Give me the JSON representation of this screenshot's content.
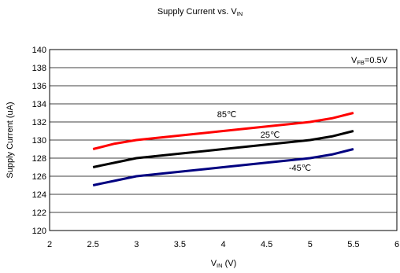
{
  "chart_data": {
    "type": "line",
    "title": {
      "main": "Supply Current vs. V",
      "sub": "IN"
    },
    "xlabel": {
      "main": "V",
      "sub": "IN",
      "rest": " (V)"
    },
    "ylabel": "Supply Current (uA)",
    "xlim": [
      2,
      6
    ],
    "ylim": [
      120,
      140
    ],
    "xticks": [
      2,
      2.5,
      3,
      3.5,
      4,
      4.5,
      5,
      5.5,
      6
    ],
    "xtick_labels": [
      "2",
      "2.5",
      "3",
      "3.5",
      "4",
      "4.5",
      "5",
      "5.5",
      "6"
    ],
    "yticks": [
      120,
      122,
      124,
      126,
      128,
      130,
      132,
      134,
      136,
      138,
      140
    ],
    "ytick_labels": [
      "120",
      "122",
      "124",
      "126",
      "128",
      "130",
      "132",
      "134",
      "136",
      "138",
      "140"
    ],
    "grid": {
      "horizontal": true,
      "vertical": false
    },
    "annotation": {
      "main": "V",
      "sub": "FB",
      "rest": "=0.5V"
    },
    "series": [
      {
        "name": "85℃",
        "color": "#ff0000",
        "x": [
          2.5,
          2.75,
          3.0,
          3.5,
          4.0,
          4.5,
          5.0,
          5.25,
          5.5
        ],
        "y": [
          129.0,
          129.6,
          130.0,
          130.5,
          131.0,
          131.5,
          132.0,
          132.4,
          133.0
        ]
      },
      {
        "name": "25℃",
        "color": "#000000",
        "x": [
          2.5,
          2.75,
          3.0,
          3.5,
          4.0,
          4.5,
          5.0,
          5.25,
          5.5
        ],
        "y": [
          127.0,
          127.5,
          128.0,
          128.5,
          129.0,
          129.5,
          130.0,
          130.4,
          131.0
        ]
      },
      {
        "name": "-45℃",
        "color": "#000080",
        "x": [
          2.5,
          2.75,
          3.0,
          3.5,
          4.0,
          4.5,
          5.0,
          5.25,
          5.5
        ],
        "y": [
          125.0,
          125.5,
          126.0,
          126.5,
          127.0,
          127.5,
          128.0,
          128.4,
          129.0
        ]
      }
    ]
  }
}
